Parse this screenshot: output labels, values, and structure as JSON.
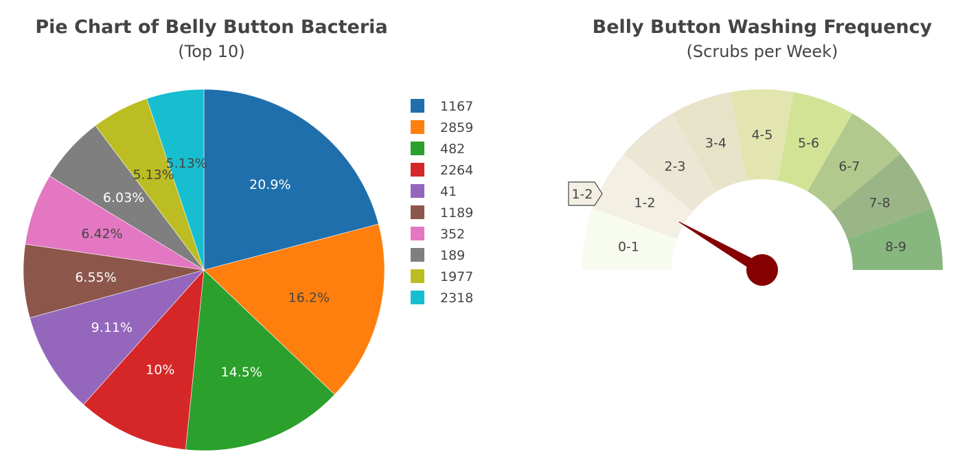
{
  "chart_data": [
    {
      "type": "pie",
      "title": "Pie Chart of Belly Button Bacteria",
      "subtitle": "(Top 10)",
      "legend_position": "right",
      "slices": [
        {
          "label": "1167",
          "percent": 20.9,
          "text": "20.9%",
          "color": "#1f6fad",
          "text_color": "#ffffff"
        },
        {
          "label": "2859",
          "percent": 16.2,
          "text": "16.2%",
          "color": "#ff7f0e",
          "text_color": "#444444"
        },
        {
          "label": "482",
          "percent": 14.5,
          "text": "14.5%",
          "color": "#2ca02c",
          "text_color": "#ffffff"
        },
        {
          "label": "2264",
          "percent": 10.0,
          "text": "10%",
          "color": "#d62728",
          "text_color": "#ffffff"
        },
        {
          "label": "41",
          "percent": 9.11,
          "text": "9.11%",
          "color": "#9467bd",
          "text_color": "#ffffff"
        },
        {
          "label": "1189",
          "percent": 6.55,
          "text": "6.55%",
          "color": "#8c564b",
          "text_color": "#ffffff"
        },
        {
          "label": "352",
          "percent": 6.42,
          "text": "6.42%",
          "color": "#e377c2",
          "text_color": "#444444"
        },
        {
          "label": "189",
          "percent": 6.03,
          "text": "6.03%",
          "color": "#7f7f7f",
          "text_color": "#ffffff"
        },
        {
          "label": "1977",
          "percent": 5.13,
          "text": "5.13%",
          "color": "#bcbd22",
          "text_color": "#444444"
        },
        {
          "label": "2318",
          "percent": 5.13,
          "text": "5.13%",
          "color": "#17becf",
          "text_color": "#444444"
        }
      ]
    },
    {
      "type": "gauge",
      "title": "Belly Button Washing Frequency",
      "subtitle": "(Scrubs per Week)",
      "value_label": "1-2",
      "needle_value": 1.5,
      "needle_color": "#850000",
      "range": [
        0,
        9
      ],
      "segments": [
        {
          "label": "0-1",
          "color": "#f8fbef"
        },
        {
          "label": "1-2",
          "color": "#f3efe3"
        },
        {
          "label": "2-3",
          "color": "#ece6d4"
        },
        {
          "label": "3-4",
          "color": "#e7e3c9"
        },
        {
          "label": "4-5",
          "color": "#e3e5b0"
        },
        {
          "label": "5-6",
          "color": "#d2e396"
        },
        {
          "label": "6-7",
          "color": "#b1c98d"
        },
        {
          "label": "7-8",
          "color": "#9ab687"
        },
        {
          "label": "8-9",
          "color": "#87b77e"
        }
      ]
    }
  ]
}
